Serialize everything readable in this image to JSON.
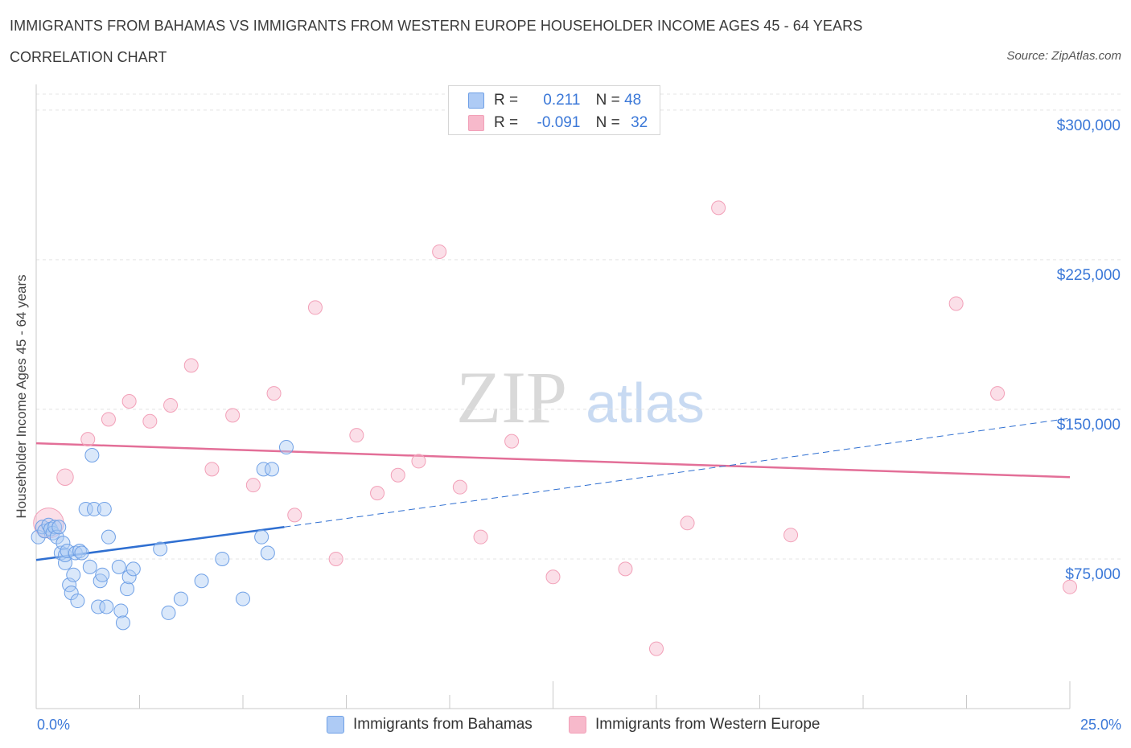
{
  "header": {
    "title": "IMMIGRANTS FROM BAHAMAS VS IMMIGRANTS FROM WESTERN EUROPE HOUSEHOLDER INCOME AGES 45 - 64 YEARS",
    "subtitle": "CORRELATION CHART",
    "source": "Source: ZipAtlas.com"
  },
  "watermark": {
    "zip": "ZIP",
    "atlas": "atlas"
  },
  "legend_top": {
    "rows": [
      {
        "r_label": "R =",
        "r_value": "0.211",
        "n_label": "N =",
        "n_value": "48",
        "color": "#aecbf5"
      },
      {
        "r_label": "R =",
        "r_value": "-0.091",
        "n_label": "N =",
        "n_value": "32",
        "color": "#f7b9cb"
      }
    ]
  },
  "legend_bottom": {
    "items": [
      {
        "label": "Immigrants from Bahamas",
        "color": "#aecbf5"
      },
      {
        "label": "Immigrants from Western Europe",
        "color": "#f7b9cb"
      }
    ]
  },
  "x_labels": {
    "left": "0.0%",
    "right": "25.0%"
  },
  "chart_data": {
    "type": "scatter",
    "title": "IMMIGRANTS FROM BAHAMAS VS IMMIGRANTS FROM WESTERN EUROPE HOUSEHOLDER INCOME AGES 45 - 64 YEARS",
    "xlabel": "",
    "ylabel": "Householder Income Ages 45 - 64 years",
    "xlim": [
      0,
      25
    ],
    "ylim": [
      0,
      320000
    ],
    "y_ticks": [
      75000,
      150000,
      225000,
      300000
    ],
    "y_tick_labels": [
      "$75,000",
      "$150,000",
      "$225,000",
      "$300,000"
    ],
    "grid": true,
    "legend_placement": "top-center",
    "colors": {
      "series_a": "#6fa0e6",
      "series_b": "#f2a0b8",
      "line_a": "#2f6fd1",
      "line_b": "#e36f98"
    },
    "series": [
      {
        "name": "Immigrants from Bahamas",
        "r": 0.211,
        "n": 48,
        "trend": {
          "x": [
            0,
            6
          ],
          "y": [
            74500,
            91000
          ],
          "extended_x": [
            6,
            25
          ],
          "extended_y": [
            91000,
            145500
          ]
        },
        "points": [
          {
            "x": 0.05,
            "y": 86000,
            "s": 1
          },
          {
            "x": 0.15,
            "y": 91000,
            "s": 1
          },
          {
            "x": 0.2,
            "y": 89000,
            "s": 1
          },
          {
            "x": 0.3,
            "y": 92000,
            "s": 1
          },
          {
            "x": 0.35,
            "y": 90000,
            "s": 1
          },
          {
            "x": 0.4,
            "y": 88000,
            "s": 1
          },
          {
            "x": 0.45,
            "y": 91000,
            "s": 1
          },
          {
            "x": 0.5,
            "y": 86000,
            "s": 1
          },
          {
            "x": 0.55,
            "y": 91000,
            "s": 1
          },
          {
            "x": 0.6,
            "y": 78000,
            "s": 1
          },
          {
            "x": 0.65,
            "y": 83000,
            "s": 1
          },
          {
            "x": 0.7,
            "y": 73000,
            "s": 1
          },
          {
            "x": 0.7,
            "y": 77000,
            "s": 1
          },
          {
            "x": 0.75,
            "y": 79000,
            "s": 1
          },
          {
            "x": 0.8,
            "y": 62000,
            "s": 1
          },
          {
            "x": 0.85,
            "y": 58000,
            "s": 1
          },
          {
            "x": 0.9,
            "y": 67000,
            "s": 1
          },
          {
            "x": 0.95,
            "y": 78000,
            "s": 1
          },
          {
            "x": 1.0,
            "y": 54000,
            "s": 1
          },
          {
            "x": 1.05,
            "y": 79000,
            "s": 1
          },
          {
            "x": 1.1,
            "y": 78000,
            "s": 1
          },
          {
            "x": 1.2,
            "y": 100000,
            "s": 1
          },
          {
            "x": 1.3,
            "y": 71000,
            "s": 1
          },
          {
            "x": 1.35,
            "y": 127000,
            "s": 1
          },
          {
            "x": 1.4,
            "y": 100000,
            "s": 1
          },
          {
            "x": 1.5,
            "y": 51000,
            "s": 1
          },
          {
            "x": 1.55,
            "y": 64000,
            "s": 1
          },
          {
            "x": 1.6,
            "y": 67000,
            "s": 1
          },
          {
            "x": 1.65,
            "y": 100000,
            "s": 1
          },
          {
            "x": 1.7,
            "y": 51000,
            "s": 1
          },
          {
            "x": 1.75,
            "y": 86000,
            "s": 1
          },
          {
            "x": 2.0,
            "y": 71000,
            "s": 1
          },
          {
            "x": 2.05,
            "y": 49000,
            "s": 1
          },
          {
            "x": 2.1,
            "y": 43000,
            "s": 1
          },
          {
            "x": 2.2,
            "y": 60000,
            "s": 1
          },
          {
            "x": 2.25,
            "y": 66000,
            "s": 1
          },
          {
            "x": 2.35,
            "y": 70000,
            "s": 1
          },
          {
            "x": 3.0,
            "y": 80000,
            "s": 1
          },
          {
            "x": 3.2,
            "y": 48000,
            "s": 1
          },
          {
            "x": 3.5,
            "y": 55000,
            "s": 1
          },
          {
            "x": 4.0,
            "y": 64000,
            "s": 1
          },
          {
            "x": 4.5,
            "y": 75000,
            "s": 1
          },
          {
            "x": 5.0,
            "y": 55000,
            "s": 1
          },
          {
            "x": 5.45,
            "y": 86000,
            "s": 1
          },
          {
            "x": 5.6,
            "y": 78000,
            "s": 1
          },
          {
            "x": 5.5,
            "y": 120000,
            "s": 1
          },
          {
            "x": 5.7,
            "y": 120000,
            "s": 1
          },
          {
            "x": 6.05,
            "y": 131000,
            "s": 1
          }
        ]
      },
      {
        "name": "Immigrants from Western Europe",
        "r": -0.091,
        "n": 32,
        "trend": {
          "x": [
            0,
            25
          ],
          "y": [
            133000,
            116000
          ]
        },
        "points": [
          {
            "x": 0.3,
            "y": 93000,
            "s": 2.2
          },
          {
            "x": 0.7,
            "y": 116000,
            "s": 1.2
          },
          {
            "x": 1.25,
            "y": 135000,
            "s": 1
          },
          {
            "x": 1.75,
            "y": 145000,
            "s": 1
          },
          {
            "x": 2.25,
            "y": 154000,
            "s": 1
          },
          {
            "x": 2.75,
            "y": 144000,
            "s": 1
          },
          {
            "x": 3.25,
            "y": 152000,
            "s": 1
          },
          {
            "x": 3.75,
            "y": 172000,
            "s": 1
          },
          {
            "x": 4.25,
            "y": 120000,
            "s": 1
          },
          {
            "x": 4.75,
            "y": 147000,
            "s": 1
          },
          {
            "x": 5.25,
            "y": 112000,
            "s": 1
          },
          {
            "x": 5.75,
            "y": 158000,
            "s": 1
          },
          {
            "x": 6.25,
            "y": 97000,
            "s": 1
          },
          {
            "x": 6.75,
            "y": 201000,
            "s": 1
          },
          {
            "x": 7.25,
            "y": 75000,
            "s": 1
          },
          {
            "x": 7.75,
            "y": 137000,
            "s": 1
          },
          {
            "x": 8.25,
            "y": 108000,
            "s": 1
          },
          {
            "x": 8.75,
            "y": 117000,
            "s": 1
          },
          {
            "x": 9.25,
            "y": 124000,
            "s": 1
          },
          {
            "x": 9.75,
            "y": 229000,
            "s": 1
          },
          {
            "x": 10.25,
            "y": 111000,
            "s": 1
          },
          {
            "x": 10.75,
            "y": 86000,
            "s": 1
          },
          {
            "x": 11.5,
            "y": 134000,
            "s": 1
          },
          {
            "x": 12.5,
            "y": 66000,
            "s": 1
          },
          {
            "x": 14.25,
            "y": 70000,
            "s": 1
          },
          {
            "x": 15.0,
            "y": 30000,
            "s": 1
          },
          {
            "x": 15.75,
            "y": 93000,
            "s": 1
          },
          {
            "x": 16.5,
            "y": 251000,
            "s": 1
          },
          {
            "x": 18.25,
            "y": 87000,
            "s": 1
          },
          {
            "x": 22.25,
            "y": 203000,
            "s": 1
          },
          {
            "x": 23.25,
            "y": 158000,
            "s": 1
          },
          {
            "x": 25.0,
            "y": 61000,
            "s": 1
          }
        ]
      }
    ]
  }
}
